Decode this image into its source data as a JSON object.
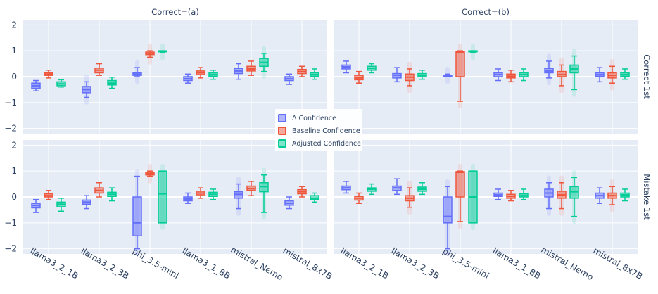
{
  "chart_data": {
    "type": "box",
    "categories": [
      "llama3_2_1B",
      "llama3_2_3B",
      "phi_3.5-mini",
      "llama3_1_8B",
      "mistral_Nemo",
      "mistral_8x7B"
    ],
    "columns": [
      "Correct=(a)",
      "Correct=(b)"
    ],
    "rows": [
      "Correct 1st",
      "Mistake 1st"
    ],
    "y_ticks": [
      "2",
      "1",
      "0",
      "−1",
      "−2"
    ],
    "ylim": [
      -2.2,
      2.2
    ],
    "grid": true,
    "legend_position": "center",
    "series": [
      {
        "name": "Δ Confidence",
        "color": "#636efa"
      },
      {
        "name": "Baseline Confidence",
        "color": "#ef553b"
      },
      {
        "name": "Adjusted Confidence",
        "color": "#00cc96"
      }
    ],
    "boxes": [
      [
        [
          [
            [
              -0.55,
              -0.45,
              -0.35,
              -0.25,
              -0.15
            ],
            [
              -0.05,
              0.05,
              0.1,
              0.15,
              0.25
            ],
            [
              -0.4,
              -0.35,
              -0.28,
              -0.2,
              -0.12
            ]
          ],
          [
            [
              -0.8,
              -0.62,
              -0.5,
              -0.38,
              -0.2
            ],
            [
              0.05,
              0.15,
              0.25,
              0.33,
              0.5
            ],
            [
              -0.45,
              -0.32,
              -0.25,
              -0.15,
              -0.02
            ]
          ],
          [
            [
              0.0,
              0.05,
              0.1,
              0.15,
              0.35
            ],
            [
              0.75,
              0.85,
              0.9,
              0.95,
              1.0
            ],
            [
              0.92,
              0.97,
              0.99,
              1.0,
              1.0
            ]
          ],
          [
            [
              -0.25,
              -0.15,
              -0.08,
              0.0,
              0.1
            ],
            [
              -0.05,
              0.08,
              0.15,
              0.22,
              0.35
            ],
            [
              -0.1,
              0.02,
              0.08,
              0.15,
              0.25
            ]
          ],
          [
            [
              -0.1,
              0.12,
              0.22,
              0.32,
              0.5
            ],
            [
              0.05,
              0.22,
              0.3,
              0.4,
              0.6
            ],
            [
              0.2,
              0.4,
              0.55,
              0.7,
              0.9
            ]
          ],
          [
            [
              -0.3,
              -0.15,
              -0.08,
              0.0,
              0.1
            ],
            [
              0.0,
              0.12,
              0.2,
              0.28,
              0.4
            ],
            [
              -0.1,
              0.02,
              0.08,
              0.15,
              0.3
            ]
          ]
        ],
        [
          [
            [
              0.15,
              0.3,
              0.38,
              0.45,
              0.6
            ],
            [
              -0.25,
              -0.12,
              -0.05,
              0.05,
              0.2
            ],
            [
              0.15,
              0.25,
              0.32,
              0.4,
              0.5
            ]
          ],
          [
            [
              -0.2,
              -0.05,
              0.05,
              0.12,
              0.35
            ],
            [
              -0.35,
              -0.15,
              -0.02,
              0.1,
              0.3
            ],
            [
              -0.1,
              0.0,
              0.05,
              0.12,
              0.25
            ]
          ],
          [
            [
              0.0,
              0.02,
              0.03,
              0.05,
              0.1
            ],
            [
              -0.95,
              0.0,
              0.95,
              0.98,
              1.0
            ],
            [
              0.92,
              0.97,
              0.99,
              1.0,
              1.0
            ]
          ],
          [
            [
              -0.15,
              0.0,
              0.08,
              0.15,
              0.3
            ],
            [
              -0.2,
              -0.05,
              0.02,
              0.1,
              0.25
            ],
            [
              -0.15,
              0.0,
              0.08,
              0.15,
              0.3
            ]
          ],
          [
            [
              -0.05,
              0.15,
              0.22,
              0.32,
              0.6
            ],
            [
              -0.35,
              0.0,
              0.08,
              0.2,
              0.45
            ],
            [
              -0.5,
              0.15,
              0.3,
              0.45,
              0.8
            ]
          ],
          [
            [
              -0.2,
              0.02,
              0.08,
              0.15,
              0.35
            ],
            [
              -0.25,
              -0.05,
              0.05,
              0.15,
              0.4
            ],
            [
              -0.1,
              0.02,
              0.08,
              0.15,
              0.3
            ]
          ]
        ]
      ],
      [
        [
          [
            [
              -0.6,
              -0.42,
              -0.33,
              -0.25,
              -0.1
            ],
            [
              -0.1,
              0.0,
              0.05,
              0.12,
              0.25
            ],
            [
              -0.55,
              -0.38,
              -0.28,
              -0.2,
              -0.05
            ]
          ],
          [
            [
              -0.45,
              -0.28,
              -0.2,
              -0.12,
              0.05
            ],
            [
              0.0,
              0.15,
              0.25,
              0.35,
              0.55
            ],
            [
              -0.15,
              0.02,
              0.1,
              0.18,
              0.35
            ]
          ],
          [
            [
              -2.0,
              -1.5,
              -1.0,
              0.0,
              0.8
            ],
            [
              0.8,
              0.85,
              0.9,
              0.95,
              1.0
            ],
            [
              -1.0,
              -1.0,
              0.12,
              1.0,
              1.0
            ]
          ],
          [
            [
              -0.25,
              -0.15,
              -0.08,
              0.0,
              0.15
            ],
            [
              -0.05,
              0.08,
              0.15,
              0.22,
              0.35
            ],
            [
              -0.1,
              0.02,
              0.1,
              0.18,
              0.3
            ]
          ],
          [
            [
              -0.45,
              -0.05,
              0.1,
              0.2,
              0.5
            ],
            [
              0.05,
              0.25,
              0.32,
              0.42,
              0.6
            ],
            [
              -0.6,
              0.2,
              0.4,
              0.55,
              0.85
            ]
          ],
          [
            [
              -0.45,
              -0.32,
              -0.25,
              -0.15,
              0.0
            ],
            [
              0.0,
              0.12,
              0.2,
              0.28,
              0.4
            ],
            [
              -0.2,
              -0.1,
              -0.05,
              0.05,
              0.15
            ]
          ]
        ],
        [
          [
            [
              0.15,
              0.28,
              0.35,
              0.42,
              0.6
            ],
            [
              -0.25,
              -0.12,
              -0.05,
              0.02,
              0.15
            ],
            [
              0.1,
              0.22,
              0.3,
              0.35,
              0.5
            ]
          ],
          [
            [
              0.1,
              0.25,
              0.35,
              0.42,
              0.7
            ],
            [
              -0.4,
              -0.15,
              -0.05,
              0.05,
              0.35
            ],
            [
              0.1,
              0.22,
              0.3,
              0.38,
              0.55
            ]
          ],
          [
            [
              -2.0,
              -1.0,
              -0.75,
              0.0,
              0.4
            ],
            [
              -0.95,
              0.0,
              0.95,
              0.98,
              1.0
            ],
            [
              -1.0,
              -1.0,
              0.0,
              1.0,
              1.0
            ]
          ],
          [
            [
              -0.1,
              0.02,
              0.08,
              0.15,
              0.3
            ],
            [
              -0.15,
              -0.05,
              0.02,
              0.1,
              0.25
            ],
            [
              -0.1,
              0.0,
              0.05,
              0.12,
              0.3
            ]
          ],
          [
            [
              -0.45,
              0.0,
              0.15,
              0.3,
              0.55
            ],
            [
              -0.45,
              -0.05,
              0.08,
              0.22,
              0.55
            ],
            [
              -0.75,
              -0.05,
              0.2,
              0.4,
              0.75
            ]
          ],
          [
            [
              -0.25,
              -0.05,
              0.05,
              0.15,
              0.35
            ],
            [
              -0.3,
              -0.05,
              0.05,
              0.15,
              0.4
            ],
            [
              -0.15,
              0.0,
              0.08,
              0.15,
              0.3
            ]
          ]
        ]
      ]
    ]
  }
}
